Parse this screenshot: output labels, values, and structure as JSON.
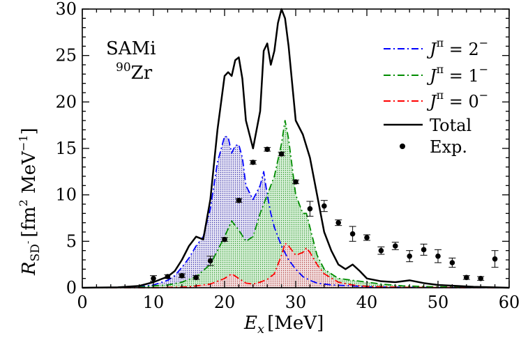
{
  "chart_data": {
    "type": "line",
    "title": "",
    "annotations": {
      "model": "SAMi",
      "nucleus_mass": "90",
      "nucleus_symbol": "Zr"
    },
    "xlabel": {
      "symbol": "E",
      "subscript": "x",
      "unit": "[MeV]"
    },
    "ylabel": {
      "symbol": "R",
      "subscript": "SD",
      "sub_superscript": "-",
      "unit_open": "[fm",
      "unit_sup1": "2",
      "unit_mid": " MeV",
      "unit_sup2": "−1",
      "unit_close": "]"
    },
    "xlim": [
      0,
      60
    ],
    "ylim": [
      0,
      30
    ],
    "xticks": [
      "0",
      "10",
      "20",
      "30",
      "40",
      "50",
      "60"
    ],
    "yticks": [
      "0",
      "5",
      "10",
      "15",
      "20",
      "25",
      "30"
    ],
    "legend_position": "top-right",
    "series": [
      {
        "name": "Jπ = 2−",
        "legend": {
          "base": "J",
          "sup": "π",
          "rel": " = 2",
          "sup2": "−"
        },
        "color": "#0000ff",
        "fill": "#5a50b4",
        "dash": "10 4 2 4",
        "x": [
          0,
          5,
          8,
          10,
          12,
          13,
          14,
          15,
          16,
          17,
          18,
          19,
          20,
          20.5,
          21,
          21.5,
          22,
          22.5,
          23,
          24,
          25,
          25.5,
          26,
          26.5,
          27,
          28,
          29,
          30,
          31,
          32,
          33,
          35,
          38,
          40,
          45,
          50,
          55,
          60
        ],
        "values": [
          0,
          0.02,
          0.1,
          0.3,
          0.8,
          1.3,
          2.2,
          3.2,
          4.5,
          5.5,
          8.5,
          13.5,
          16.3,
          16.2,
          14.5,
          15.3,
          15.4,
          14.0,
          11.0,
          9.5,
          11.0,
          12.5,
          10.0,
          8.0,
          6.5,
          4.5,
          3.0,
          2.0,
          1.2,
          0.8,
          0.5,
          0.3,
          0.2,
          0.1,
          0.05,
          0.02,
          0.01,
          0
        ]
      },
      {
        "name": "Jπ = 1−",
        "legend": {
          "base": "J",
          "sup": "π",
          "rel": " = 1",
          "sup2": "−"
        },
        "color": "#008c00",
        "fill": "#7ed27e",
        "dash": "10 4 2 4",
        "x": [
          0,
          5,
          8,
          10,
          12,
          14,
          16,
          18,
          20,
          21,
          22,
          23,
          24,
          25,
          26,
          27,
          28,
          28.5,
          29,
          30,
          31,
          31.5,
          32,
          33,
          34,
          36,
          38,
          40,
          42,
          45,
          50,
          55,
          60
        ],
        "values": [
          0,
          0.01,
          0.05,
          0.2,
          0.3,
          0.6,
          1.2,
          2.5,
          5.5,
          7.2,
          6.2,
          5.0,
          5.5,
          8.0,
          10.0,
          12.0,
          15.5,
          18.0,
          16.0,
          10.0,
          8.0,
          8.0,
          6.5,
          3.5,
          2.0,
          1.0,
          0.8,
          0.6,
          0.4,
          0.2,
          0.1,
          0.05,
          0
        ]
      },
      {
        "name": "Jπ = 0−",
        "legend": {
          "base": "J",
          "sup": "π",
          "rel": " = 0",
          "sup2": "−"
        },
        "color": "#ff0000",
        "fill": "#d28c8c",
        "dash": "10 4 2 4",
        "x": [
          0,
          10,
          15,
          18,
          20,
          21,
          22,
          23,
          24,
          25,
          26,
          27,
          28,
          28.5,
          29,
          30,
          31,
          31.5,
          32,
          33,
          34,
          36,
          38,
          40,
          45,
          50,
          60
        ],
        "values": [
          0,
          0,
          0.1,
          0.4,
          1.0,
          1.5,
          1.0,
          0.5,
          0.4,
          0.6,
          0.9,
          1.5,
          3.5,
          4.8,
          4.5,
          3.5,
          3.8,
          4.3,
          3.8,
          2.5,
          1.5,
          0.6,
          0.3,
          0.15,
          0.05,
          0.02,
          0
        ]
      },
      {
        "name": "Total",
        "legend": {
          "text": "Total"
        },
        "color": "#000000",
        "dash": "",
        "x": [
          0,
          5,
          8,
          10,
          12,
          13,
          14,
          15,
          16,
          17,
          18,
          19,
          20,
          20.5,
          21,
          21.5,
          22,
          22.5,
          23,
          24,
          25,
          25.5,
          26,
          26.5,
          27,
          27.5,
          28,
          28.5,
          29,
          30,
          31,
          32,
          33,
          34,
          35,
          36,
          37,
          38,
          39,
          40,
          42,
          44,
          46,
          48,
          50,
          55,
          60
        ],
        "values": [
          0,
          0.05,
          0.2,
          0.6,
          1.2,
          1.8,
          3.0,
          4.5,
          5.5,
          5.2,
          9.5,
          17.0,
          22.8,
          23.2,
          22.8,
          24.5,
          24.8,
          22.5,
          18.0,
          15.0,
          19.0,
          25.5,
          26.3,
          24.0,
          25.5,
          28.5,
          30.0,
          29.0,
          26.0,
          18.0,
          16.5,
          14.0,
          10.0,
          6.0,
          4.0,
          2.5,
          2.0,
          2.5,
          1.8,
          1.0,
          0.7,
          0.6,
          0.8,
          0.5,
          0.3,
          0.1,
          0
        ]
      }
    ],
    "experiment": {
      "name": "Exp.",
      "legend": {
        "text": "Exp."
      },
      "x": [
        10,
        12,
        14,
        16,
        18,
        20,
        22,
        24,
        26,
        28,
        30,
        32,
        34,
        36,
        38,
        40,
        42,
        44,
        46,
        48,
        50,
        52,
        54,
        56,
        58
      ],
      "y": [
        1.0,
        1.2,
        1.3,
        1.1,
        2.9,
        5.2,
        9.4,
        13.5,
        14.9,
        14.4,
        11.4,
        8.5,
        8.8,
        7.0,
        5.8,
        5.4,
        4.0,
        4.5,
        3.4,
        4.1,
        3.4,
        2.7,
        1.1,
        1.0,
        3.1
      ],
      "err": [
        0.3,
        0.2,
        0.2,
        0.2,
        0.5,
        0.2,
        0.2,
        0.2,
        0.2,
        0.2,
        0.2,
        0.8,
        0.6,
        0.3,
        0.8,
        0.3,
        0.4,
        0.4,
        0.6,
        0.6,
        0.7,
        0.5,
        0.2,
        0.2,
        0.9
      ]
    }
  }
}
